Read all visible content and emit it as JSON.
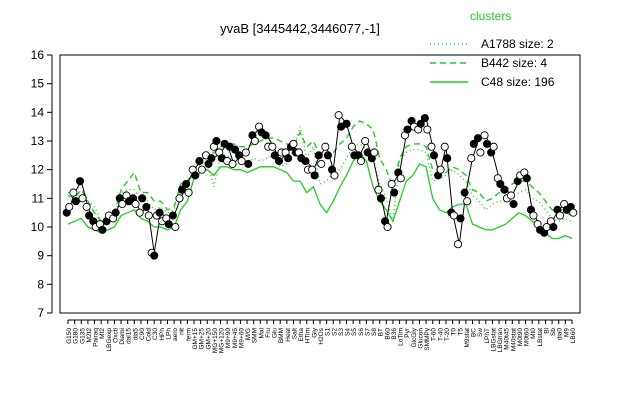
{
  "chart_data": {
    "type": "line",
    "title": "yvaB [3445442,3446077,-1]",
    "xlabel": "",
    "ylabel": "",
    "ylim": [
      7,
      16
    ],
    "yticks": [
      7,
      8,
      9,
      10,
      11,
      12,
      13,
      14,
      15,
      16
    ],
    "grid": false,
    "legend": {
      "title": "clusters",
      "placement": "top-right",
      "color": "#22cc22",
      "entries": [
        {
          "label": "A1788 size: 2",
          "style": "dotted"
        },
        {
          "label": "B442 size: 4",
          "style": "dashed"
        },
        {
          "label": "C48 size: 196",
          "style": "solid"
        }
      ]
    },
    "xtick_labels": [
      "G150",
      "G180",
      "G135",
      "M2t2",
      "Pairaq",
      "Mt2",
      "LBGexp",
      "Oxctl",
      "Diami",
      "dal15",
      "dia5",
      "C90",
      "Cold",
      "C30",
      "HPh",
      "LPh",
      "aero",
      "nit",
      "ferm",
      "GM+15",
      "GM+25",
      "GM+20",
      "MG+150",
      "MG+120",
      "M9+90",
      "M9+45",
      "M9+60",
      "M/G",
      "SMM",
      "Mal",
      "Fru",
      "Glu",
      "BMM",
      "Heat",
      "Salt",
      "Etha",
      "HTim",
      "Gly",
      "H2Os",
      "S1",
      "S2",
      "S3",
      "S4",
      "S5",
      "S6",
      "S7",
      "S8",
      "BT",
      "B60",
      "B36",
      "LoTim",
      "Pyr",
      "GlcGly",
      "Glucon",
      "SMMPy",
      "T-60",
      "T-40",
      "T-20",
      "T0",
      "T5",
      "M9stat",
      "BC",
      "Sw",
      "LPhT",
      "LBGstat",
      "LBGtran",
      "M40t45",
      "M40stat",
      "M0t90",
      "M0t60",
      "Mt0",
      "LBstat",
      "Bl",
      "Sb",
      "dia0",
      "M9",
      "LB60"
    ],
    "series": [
      {
        "name": "A1788 size: 2",
        "style": "dotted",
        "values": [
          11.2,
          11.2,
          11.5,
          10.9,
          10.7,
          10.2,
          10.3,
          10.4,
          11.2,
          11.3,
          11.3,
          10.9,
          10.9,
          10.6,
          10.7,
          10.5,
          10.6,
          11.3,
          11.4,
          12.0,
          12.2,
          12.3,
          11.4,
          12.5,
          12.5,
          12.3,
          12.3,
          12.2,
          12.4,
          12.3,
          12.4,
          12.5,
          12.1,
          12.2,
          12.7,
          13.5,
          12.4,
          12.8,
          11.5,
          11.6,
          11.9,
          12.0,
          12.4,
          12.8,
          12.9,
          12.7,
          12.4,
          11.5,
          11.0,
          10.2,
          12.3,
          12.6,
          12.7,
          12.7,
          12.6,
          11.6,
          11.7,
          11.8,
          12.0,
          11.8,
          11.6,
          11.1,
          10.9,
          10.6,
          10.8,
          10.9,
          10.9,
          11.1,
          11.2,
          11.3,
          11.0,
          10.9,
          10.6,
          10.3,
          10.2,
          10.3,
          10.2
        ]
      },
      {
        "name": "B442 size: 4",
        "style": "dashed",
        "values": [
          11.1,
          11.0,
          11.3,
          10.9,
          10.5,
          10.2,
          10.4,
          10.5,
          11.3,
          11.6,
          11.9,
          11.2,
          11.2,
          10.9,
          10.9,
          10.6,
          10.7,
          11.5,
          11.6,
          12.0,
          12.3,
          12.5,
          12.6,
          12.8,
          12.9,
          12.9,
          12.8,
          12.8,
          12.9,
          13.0,
          13.1,
          13.1,
          13.0,
          12.9,
          12.8,
          13.3,
          12.8,
          13.0,
          12.5,
          12.4,
          12.6,
          12.9,
          13.1,
          13.5,
          13.7,
          13.6,
          13.4,
          12.4,
          12.0,
          11.4,
          12.4,
          12.8,
          12.9,
          12.9,
          12.8,
          12.0,
          12.0,
          11.9,
          12.1,
          12.0,
          11.8,
          11.3,
          11.2,
          10.9,
          11.0,
          11.2,
          11.3,
          11.5,
          11.6,
          11.6,
          11.4,
          11.2,
          10.9,
          10.6,
          10.5,
          10.5,
          10.4
        ]
      },
      {
        "name": "C48 size: 196",
        "style": "solid",
        "values": [
          10.1,
          10.2,
          10.3,
          10.0,
          9.9,
          9.8,
          9.9,
          10.0,
          10.4,
          10.5,
          10.6,
          10.3,
          10.2,
          10.0,
          10.0,
          9.9,
          10.0,
          10.6,
          10.9,
          11.7,
          11.9,
          12.0,
          11.8,
          12.1,
          12.1,
          12.0,
          12.0,
          11.9,
          12.0,
          12.1,
          12.1,
          12.1,
          12.0,
          11.9,
          11.6,
          11.6,
          11.2,
          11.4,
          10.8,
          10.5,
          10.9,
          11.4,
          11.8,
          12.3,
          12.6,
          12.3,
          11.4,
          10.9,
          10.6,
          10.2,
          10.9,
          11.6,
          11.8,
          12.2,
          12.1,
          11.0,
          10.6,
          10.5,
          10.7,
          10.8,
          10.8,
          10.1,
          10.0,
          9.9,
          9.9,
          10.0,
          10.1,
          10.3,
          10.5,
          10.4,
          10.2,
          10.0,
          9.8,
          9.6,
          9.6,
          9.7,
          9.6
        ]
      }
    ],
    "points": [
      {
        "x": 0,
        "values": [
          10.5,
          10.7
        ]
      },
      {
        "x": 1,
        "values": [
          11.2,
          10.9
        ]
      },
      {
        "x": 2,
        "values": [
          11.6,
          11.0
        ]
      },
      {
        "x": 3,
        "values": [
          10.7,
          10.4
        ]
      },
      {
        "x": 4,
        "values": [
          10.2,
          10.0
        ]
      },
      {
        "x": 5,
        "values": [
          10.1,
          9.9
        ]
      },
      {
        "x": 6,
        "values": [
          10.2,
          10.4
        ]
      },
      {
        "x": 7,
        "values": [
          10.3,
          10.5
        ]
      },
      {
        "x": 8,
        "values": [
          11.0,
          10.8
        ]
      },
      {
        "x": 9,
        "values": [
          11.1,
          10.9
        ]
      },
      {
        "x": 10,
        "values": [
          11.0,
          10.8
        ]
      },
      {
        "x": 11,
        "values": [
          10.5,
          11.0
        ]
      },
      {
        "x": 12,
        "values": [
          10.7,
          10.4
        ]
      },
      {
        "x": 13,
        "values": [
          9.1,
          9.0,
          10.4
        ]
      },
      {
        "x": 14,
        "values": [
          10.5,
          10.2
        ]
      },
      {
        "x": 15,
        "values": [
          10.3,
          10.1
        ]
      },
      {
        "x": 16,
        "values": [
          10.4,
          10.0
        ]
      },
      {
        "x": 17,
        "values": [
          11.0,
          11.3
        ]
      },
      {
        "x": 18,
        "values": [
          11.5,
          11.2
        ]
      },
      {
        "x": 19,
        "values": [
          12.0,
          11.8
        ]
      },
      {
        "x": 20,
        "values": [
          12.3,
          12.0
        ]
      },
      {
        "x": 21,
        "values": [
          12.5,
          12.2
        ]
      },
      {
        "x": 22,
        "values": [
          12.4,
          12.8,
          13.0
        ]
      },
      {
        "x": 23,
        "values": [
          12.6,
          12.4
        ]
      },
      {
        "x": 24,
        "values": [
          12.9,
          12.3,
          12.8
        ]
      },
      {
        "x": 25,
        "values": [
          12.2,
          12.7
        ]
      },
      {
        "x": 26,
        "values": [
          12.5,
          12.3
        ]
      },
      {
        "x": 27,
        "values": [
          12.6,
          12.2
        ]
      },
      {
        "x": 28,
        "values": [
          13.2,
          13.0
        ]
      },
      {
        "x": 29,
        "values": [
          13.5,
          13.3
        ]
      },
      {
        "x": 30,
        "values": [
          13.2,
          12.8
        ]
      },
      {
        "x": 31,
        "values": [
          12.8,
          12.5
        ]
      },
      {
        "x": 32,
        "values": [
          12.3,
          12.6
        ]
      },
      {
        "x": 33,
        "values": [
          12.6,
          12.4
        ]
      },
      {
        "x": 34,
        "values": [
          12.8,
          12.9,
          12.6
        ]
      },
      {
        "x": 35,
        "values": [
          12.6,
          12.4
        ]
      },
      {
        "x": 36,
        "values": [
          12.3,
          12.0
        ]
      },
      {
        "x": 37,
        "values": [
          12.0,
          11.8
        ]
      },
      {
        "x": 38,
        "values": [
          12.5,
          12.2
        ]
      },
      {
        "x": 39,
        "values": [
          12.8,
          12.5
        ]
      },
      {
        "x": 40,
        "values": [
          12.0,
          11.8
        ]
      },
      {
        "x": 41,
        "values": [
          13.9,
          13.5
        ]
      },
      {
        "x": 42,
        "values": [
          13.6
        ]
      },
      {
        "x": 43,
        "values": [
          12.8,
          12.5
        ]
      },
      {
        "x": 44,
        "values": [
          12.5,
          12.3
        ]
      },
      {
        "x": 45,
        "values": [
          13.0,
          12.6
        ]
      },
      {
        "x": 46,
        "values": [
          12.4,
          12.6
        ]
      },
      {
        "x": 47,
        "values": [
          11.3,
          11.0
        ]
      },
      {
        "x": 48,
        "values": [
          10.2,
          10.0
        ]
      },
      {
        "x": 49,
        "values": [
          11.5,
          11.2
        ]
      },
      {
        "x": 50,
        "values": [
          11.9,
          11.7
        ]
      },
      {
        "x": 51,
        "values": [
          13.2,
          13.4
        ]
      },
      {
        "x": 52,
        "values": [
          13.7,
          13.5
        ]
      },
      {
        "x": 53,
        "values": [
          13.4,
          13.6
        ]
      },
      {
        "x": 54,
        "values": [
          13.8,
          13.4
        ]
      },
      {
        "x": 55,
        "values": [
          12.8,
          12.5
        ]
      },
      {
        "x": 56,
        "values": [
          11.8,
          12.0
        ]
      },
      {
        "x": 57,
        "values": [
          12.8,
          12.4
        ]
      },
      {
        "x": 58,
        "values": [
          10.5,
          10.4
        ]
      },
      {
        "x": 59,
        "values": [
          9.4,
          10.3
        ]
      },
      {
        "x": 60,
        "values": [
          11.2,
          10.9
        ]
      },
      {
        "x": 61,
        "values": [
          12.4,
          12.9
        ]
      },
      {
        "x": 62,
        "values": [
          13.1,
          12.6
        ]
      },
      {
        "x": 63,
        "values": [
          13.2,
          12.9
        ]
      },
      {
        "x": 64,
        "values": [
          12.6,
          12.8
        ]
      },
      {
        "x": 65,
        "values": [
          11.7,
          11.5
        ]
      },
      {
        "x": 66,
        "values": [
          11.3,
          11.0
        ]
      },
      {
        "x": 67,
        "values": [
          11.1,
          10.8
        ]
      },
      {
        "x": 68,
        "values": [
          11.6,
          11.8
        ]
      },
      {
        "x": 69,
        "values": [
          11.9,
          11.7
        ]
      },
      {
        "x": 70,
        "values": [
          10.6,
          10.4
        ]
      },
      {
        "x": 71,
        "values": [
          10.1,
          9.9
        ]
      },
      {
        "x": 72,
        "values": [
          9.8,
          10.0
        ]
      },
      {
        "x": 73,
        "values": [
          10.2,
          10.0
        ]
      },
      {
        "x": 74,
        "values": [
          10.6,
          10.4
        ]
      },
      {
        "x": 75,
        "values": [
          10.8,
          10.6
        ]
      },
      {
        "x": 76,
        "values": [
          10.7,
          10.5
        ]
      }
    ]
  }
}
